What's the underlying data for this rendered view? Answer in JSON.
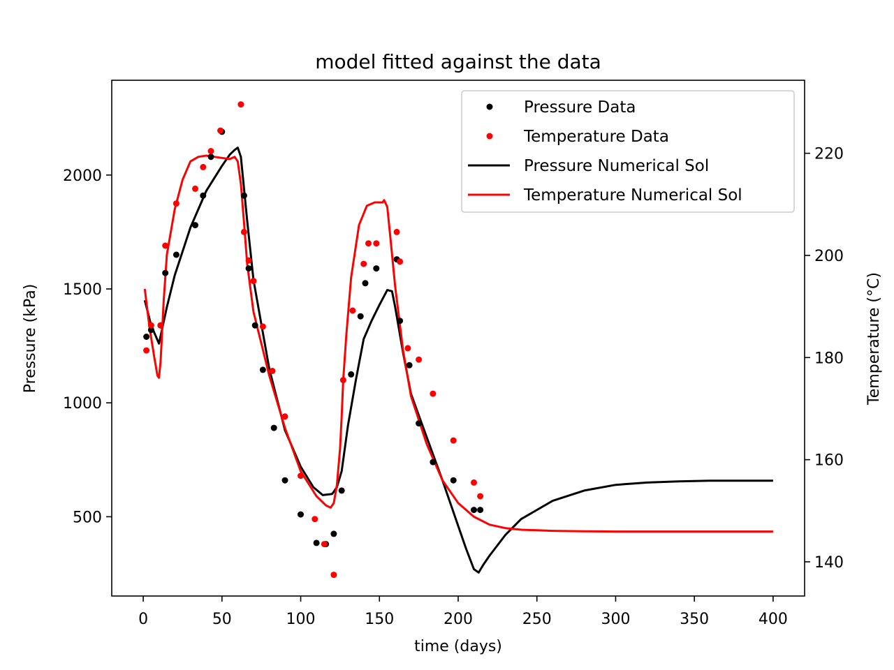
{
  "chart_data": {
    "type": "scatter",
    "title": "model fitted against the data",
    "xlabel": "time (days)",
    "ylabel_left": "Pressure (kPa)",
    "ylabel_right": "Temperature ($^\\circ$C)",
    "ylabel_right_display": "Temperature (°C)",
    "xlim": [
      -20,
      420
    ],
    "ylim_left": [
      152,
      2416
    ],
    "ylim_right": [
      133.3,
      234.3
    ],
    "xticks": [
      0,
      50,
      100,
      150,
      200,
      250,
      300,
      350,
      400
    ],
    "yticks_left": [
      500,
      1000,
      1500,
      2000
    ],
    "yticks_right": [
      140,
      160,
      180,
      200,
      220
    ],
    "grid": false,
    "legend_position": "upper right",
    "legend": [
      {
        "label": "Pressure Data",
        "kind": "marker",
        "color": "#000000"
      },
      {
        "label": "Temperature Data",
        "kind": "marker",
        "color": "#ff0000"
      },
      {
        "label": "Pressure Numerical Sol",
        "kind": "line",
        "color": "#000000"
      },
      {
        "label": "Temperature Numerical Sol",
        "kind": "line",
        "color": "#ff0000"
      }
    ],
    "series": [
      {
        "name": "Pressure Data",
        "axis": "left",
        "kind": "scatter",
        "color": "#000000",
        "x": [
          2,
          5,
          11,
          14,
          21,
          33,
          38,
          43,
          50,
          64,
          67,
          71,
          76,
          83,
          90,
          100,
          110,
          116,
          121,
          126,
          132,
          138,
          141,
          148,
          161,
          163,
          169,
          175,
          184,
          197,
          210,
          214
        ],
        "y": [
          1290,
          1320,
          1340,
          1570,
          1650,
          1780,
          1910,
          2080,
          2190,
          1910,
          1590,
          1340,
          1145,
          890,
          660,
          510,
          385,
          380,
          425,
          615,
          1125,
          1380,
          1525,
          1590,
          1630,
          1360,
          1165,
          910,
          740,
          660,
          530,
          530
        ]
      },
      {
        "name": "Temperature Data",
        "axis": "left",
        "kind": "scatter",
        "color": "#ff0000",
        "x": [
          2,
          5,
          11,
          14,
          21,
          33,
          38,
          43,
          49,
          62,
          64,
          67,
          70,
          76,
          82,
          90,
          100,
          109,
          115,
          121,
          127,
          133,
          140,
          143,
          148,
          161,
          163,
          168,
          175,
          184,
          197,
          210,
          214
        ],
        "y": [
          1230,
          1340,
          1340,
          1690,
          1875,
          1940,
          2035,
          2105,
          2195,
          2310,
          1750,
          1625,
          1535,
          1335,
          1140,
          940,
          680,
          490,
          380,
          245,
          1100,
          1405,
          1610,
          1700,
          1700,
          1750,
          1620,
          1240,
          1190,
          1040,
          835,
          650,
          590
        ]
      },
      {
        "name": "Pressure Numerical Sol",
        "axis": "left",
        "kind": "line",
        "color": "#000000",
        "x": [
          1,
          5,
          10,
          15,
          20,
          30,
          40,
          50,
          55,
          58,
          60,
          62,
          66,
          70,
          80,
          90,
          100,
          108,
          114,
          120,
          123,
          126,
          130,
          135,
          140,
          145,
          150,
          155,
          158,
          160,
          165,
          170,
          180,
          190,
          200,
          205,
          210,
          213,
          216,
          220,
          230,
          240,
          260,
          280,
          300,
          320,
          340,
          360,
          380,
          400
        ],
        "y": [
          1450,
          1340,
          1260,
          1420,
          1560,
          1770,
          1930,
          2040,
          2090,
          2110,
          2120,
          2080,
          1800,
          1540,
          1150,
          880,
          720,
          630,
          595,
          600,
          630,
          700,
          900,
          1100,
          1280,
          1360,
          1430,
          1495,
          1490,
          1420,
          1220,
          1040,
          850,
          660,
          460,
          360,
          270,
          255,
          290,
          330,
          420,
          490,
          570,
          615,
          640,
          650,
          655,
          658,
          658,
          658
        ]
      },
      {
        "name": "Temperature Numerical Sol",
        "axis": "left",
        "kind": "line",
        "color": "#ff0000",
        "x": [
          1,
          4,
          7,
          9,
          10,
          11,
          13,
          15,
          20,
          25,
          30,
          35,
          40,
          50,
          55,
          58,
          60,
          62,
          64,
          66,
          70,
          80,
          90,
          100,
          110,
          116,
          119,
          121,
          123,
          125,
          126,
          127,
          129,
          132,
          137,
          142,
          147,
          150,
          152,
          153,
          155,
          157,
          160,
          165,
          170,
          180,
          190,
          200,
          210,
          220,
          230,
          240,
          260,
          280,
          300,
          320,
          340,
          360,
          380,
          400
        ],
        "y": [
          1500,
          1330,
          1200,
          1120,
          1110,
          1180,
          1450,
          1650,
          1850,
          1980,
          2060,
          2080,
          2085,
          2075,
          2070,
          2080,
          2060,
          1960,
          1790,
          1610,
          1400,
          1120,
          890,
          700,
          590,
          550,
          540,
          560,
          640,
          800,
          940,
          1100,
          1300,
          1550,
          1780,
          1865,
          1880,
          1880,
          1880,
          1890,
          1860,
          1720,
          1510,
          1230,
          1030,
          820,
          660,
          560,
          500,
          465,
          450,
          443,
          438,
          436,
          435,
          435,
          435,
          435,
          435,
          435
        ]
      }
    ]
  }
}
